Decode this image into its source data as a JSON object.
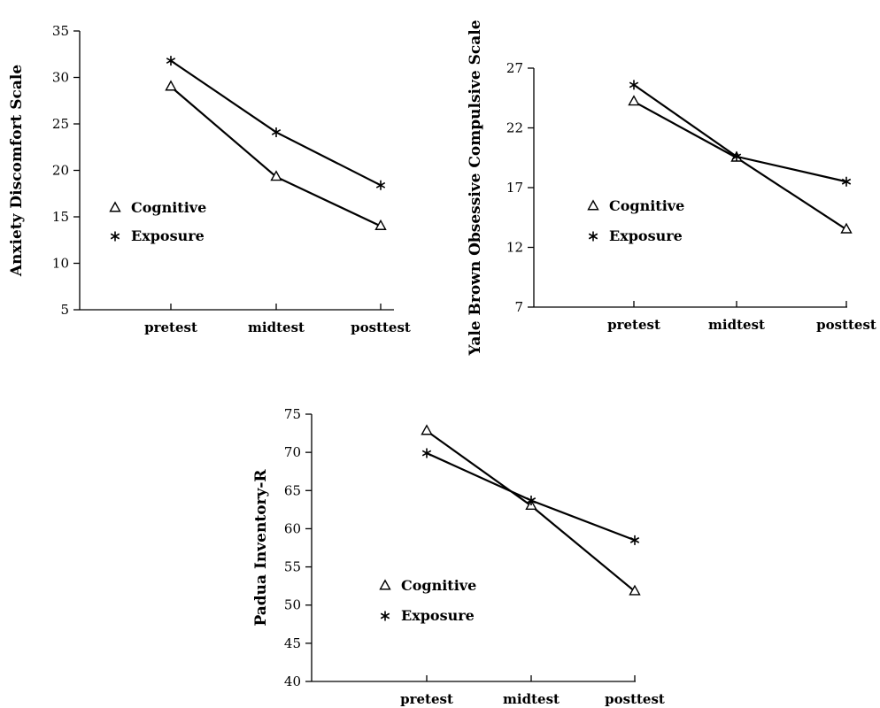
{
  "chart_data": [
    {
      "type": "line",
      "categories": [
        "pretest",
        "midtest",
        "posttest"
      ],
      "ylabel": "Anxiety Discomfort Scale",
      "ylim": [
        5,
        35
      ],
      "yticks": [
        5,
        10,
        15,
        20,
        25,
        30,
        35
      ],
      "series": [
        {
          "name": "Cognitive",
          "marker": "triangle",
          "values": [
            29,
            19.3,
            14
          ]
        },
        {
          "name": "Exposure",
          "marker": "star",
          "values": [
            31.8,
            24.1,
            18.4
          ]
        }
      ],
      "legend": "left-middle"
    },
    {
      "type": "line",
      "categories": [
        "pretest",
        "midtest",
        "posttest"
      ],
      "ylabel": "Yale Brown Obsessive Compulsive Scale",
      "ylim": [
        7,
        27
      ],
      "yticks": [
        7,
        12,
        17,
        22,
        27
      ],
      "series": [
        {
          "name": "Cognitive",
          "marker": "triangle",
          "values": [
            24.2,
            19.5,
            13.5
          ]
        },
        {
          "name": "Exposure",
          "marker": "star",
          "values": [
            25.6,
            19.6,
            17.5
          ]
        }
      ],
      "legend": "left-middle"
    },
    {
      "type": "line",
      "categories": [
        "pretest",
        "midtest",
        "posttest"
      ],
      "ylabel": "Padua Inventory-R",
      "ylim": [
        40,
        75
      ],
      "yticks": [
        40,
        45,
        50,
        55,
        60,
        65,
        70,
        75
      ],
      "series": [
        {
          "name": "Cognitive",
          "marker": "triangle",
          "values": [
            72.8,
            63,
            51.8
          ]
        },
        {
          "name": "Exposure",
          "marker": "star",
          "values": [
            69.9,
            63.7,
            58.5
          ]
        }
      ],
      "legend": "left-lower"
    }
  ]
}
